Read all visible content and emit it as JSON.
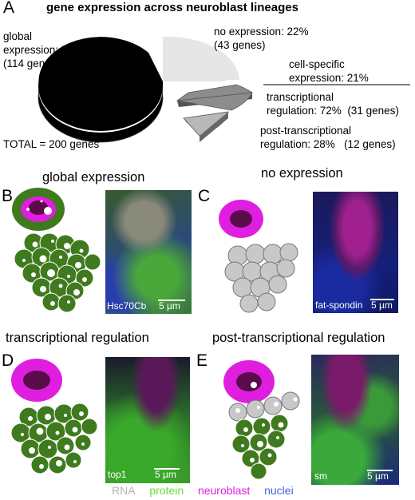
{
  "panelA": {
    "letter": "A",
    "title": "gene expression across neuroblast lineages",
    "chart_data": {
      "type": "pie",
      "categories": [
        "global expression",
        "no expression",
        "cell-specific expression"
      ],
      "values": [
        57,
        22,
        21
      ],
      "sub_breakdown": {
        "of": "cell-specific expression",
        "categories": [
          "transcriptional regulation",
          "post-transcriptional regulation"
        ],
        "values": [
          72,
          28
        ],
        "gene_counts": [
          31,
          12
        ]
      },
      "colors": [
        "#000000",
        "#e6e6e6",
        "#8c8c8c"
      ]
    },
    "labels": {
      "global": "global\nexpression: 57%\n(114 genes)",
      "noexpr": "no expression: 22%\n(43 genes)",
      "cellspec": "cell-specific\nexpression: 21%",
      "transcr": "transcriptional\nregulation: 72%  (31 genes)",
      "post": "post-transcriptional\nregulation: 28%   (12 genes)",
      "total": "TOTAL = 200 genes"
    }
  },
  "panels": [
    {
      "letter": "B",
      "title": "global expression",
      "micro_label": "Hsc70Cb",
      "scale": "5 µm"
    },
    {
      "letter": "C",
      "title": "no expression",
      "micro_label": "fat-spondin",
      "scale": "5 µm"
    },
    {
      "letter": "D",
      "title": "transcriptional regulation",
      "micro_label": "top1",
      "scale": "5 µm"
    },
    {
      "letter": "E",
      "title": "post-transcriptional regulation",
      "micro_label": "sm",
      "scale": "5 µm"
    }
  ],
  "legend": [
    {
      "text": "RNA",
      "color": "#b3b3b3"
    },
    {
      "text": "protein",
      "color": "#66e033"
    },
    {
      "text": "neuroblast",
      "color": "#e01ee0"
    },
    {
      "text": "nuclei",
      "color": "#4466dd"
    }
  ]
}
